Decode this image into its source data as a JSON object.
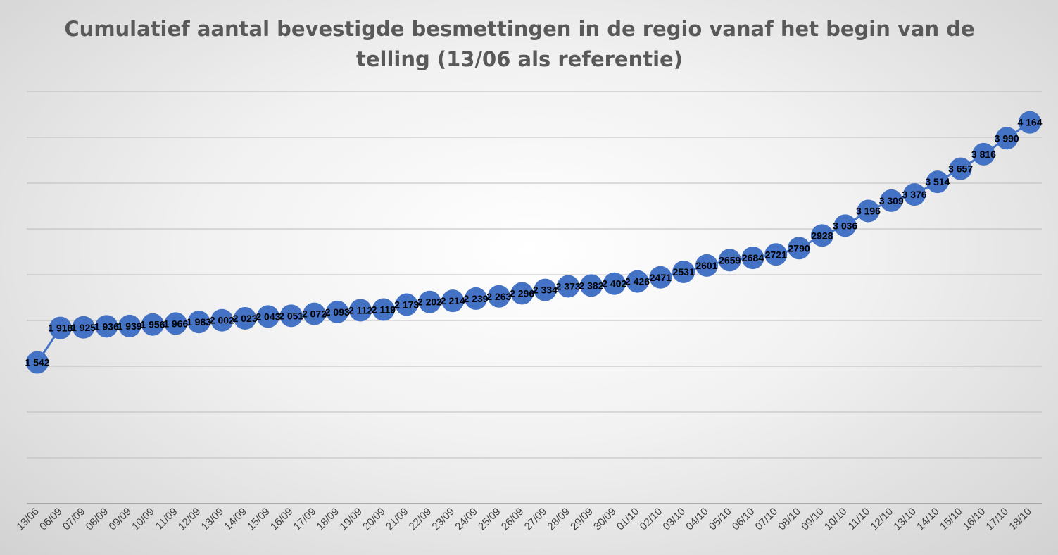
{
  "chart_data": {
    "type": "line",
    "title_line1": "Cumulatief aantal bevestigde besmettingen in de regio vanaf het begin van de",
    "title_line2": "telling (13/06 als referentie)",
    "xlabel": "",
    "ylabel": "",
    "grid": true,
    "legend": "none",
    "color": "#4472c4",
    "categories": [
      "13/06",
      "06/09",
      "07/09",
      "08/09",
      "09/09",
      "10/09",
      "11/09",
      "12/09",
      "13/09",
      "14/09",
      "15/09",
      "16/09",
      "17/09",
      "18/09",
      "19/09",
      "20/09",
      "21/09",
      "22/09",
      "23/09",
      "24/09",
      "25/09",
      "26/09",
      "27/09",
      "28/09",
      "29/09",
      "30/09",
      "01/10",
      "02/10",
      "03/10",
      "04/10",
      "05/10",
      "06/10",
      "07/10",
      "08/10",
      "09/10",
      "10/10",
      "11/10",
      "12/10",
      "13/10",
      "14/10",
      "15/10",
      "16/10",
      "17/10",
      "18/10"
    ],
    "values": [
      1542,
      1918,
      1925,
      1936,
      1939,
      1956,
      1966,
      1983,
      2002,
      2023,
      2043,
      2051,
      2072,
      2093,
      2112,
      2119,
      2173,
      2202,
      2214,
      2239,
      2263,
      2296,
      2334,
      2373,
      2382,
      2402,
      2426,
      2471,
      2531,
      2601,
      2659,
      2684,
      2721,
      2790,
      2928,
      3036,
      3196,
      3309,
      3376,
      3514,
      3657,
      3816,
      3990,
      4164
    ],
    "labels": [
      "1 542",
      "1 918",
      "1 925",
      "1 936",
      "1 939",
      "1 956",
      "1 966",
      "1 983",
      "2 002",
      "2 023",
      "2 043",
      "2 051",
      "2 072",
      "2 093",
      "2 112",
      "2 119",
      "2 173",
      "2 202",
      "2 214",
      "2 239",
      "2 263",
      "2 296",
      "2 334",
      "2 373",
      "2 382",
      "2 402",
      "2 426",
      "2471",
      "2531",
      "2601",
      "2659",
      "2684",
      "2721",
      "2790",
      "2928",
      "3 036",
      "3 196",
      "3 309",
      "3 376",
      "3 514",
      "3 657",
      "3 816",
      "3 990",
      "4 164"
    ],
    "ylim": [
      0,
      4500
    ],
    "ytick_step": 500,
    "show_y_tick_labels": false
  }
}
